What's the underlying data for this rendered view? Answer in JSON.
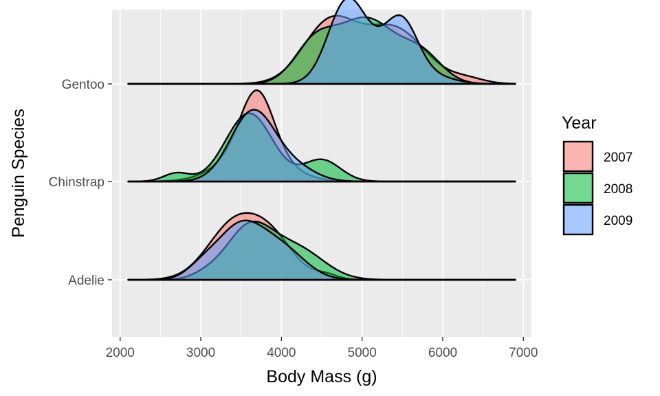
{
  "chart_data": {
    "type": "ridgeline",
    "title": "",
    "xlabel": "Body Mass (g)",
    "ylabel": "Penguin Species",
    "xlim": [
      1900,
      7100
    ],
    "xticks": [
      2000,
      3000,
      4000,
      5000,
      6000,
      7000
    ],
    "x_range_drawn": [
      2100,
      6900
    ],
    "species": [
      "Adelie",
      "Chinstrap",
      "Gentoo"
    ],
    "legend": {
      "title": "Year",
      "entries": [
        {
          "label": "2007",
          "color": "#F8766D"
        },
        {
          "label": "2008",
          "color": "#00BA38"
        },
        {
          "label": "2009",
          "color": "#619CFF"
        }
      ]
    },
    "grid": true,
    "background": "#EBEBEB",
    "series": [
      {
        "species": "Adelie",
        "year": "2007",
        "peaks": [
          {
            "mean": 3420,
            "sd": 330,
            "h": 0.67
          },
          {
            "mean": 3900,
            "sd": 280,
            "h": 0.4
          },
          {
            "mean": 4550,
            "sd": 150,
            "h": 0.06
          }
        ]
      },
      {
        "species": "Adelie",
        "year": "2008",
        "peaks": [
          {
            "mean": 3600,
            "sd": 290,
            "h": 0.62
          },
          {
            "mean": 4200,
            "sd": 330,
            "h": 0.36
          },
          {
            "mean": 3050,
            "sd": 180,
            "h": 0.05
          }
        ]
      },
      {
        "species": "Adelie",
        "year": "2009",
        "peaks": [
          {
            "mean": 3500,
            "sd": 310,
            "h": 0.66
          },
          {
            "mean": 4050,
            "sd": 280,
            "h": 0.3
          },
          {
            "mean": 3000,
            "sd": 180,
            "h": 0.1
          }
        ]
      },
      {
        "species": "Chinstrap",
        "year": "2007",
        "peaks": [
          {
            "mean": 3700,
            "sd": 200,
            "h": 0.7
          },
          {
            "mean": 3650,
            "sd": 380,
            "h": 0.4
          }
        ]
      },
      {
        "species": "Chinstrap",
        "year": "2008",
        "peaks": [
          {
            "mean": 3600,
            "sd": 290,
            "h": 0.82
          },
          {
            "mean": 4500,
            "sd": 230,
            "h": 0.26
          },
          {
            "mean": 2700,
            "sd": 160,
            "h": 0.1
          }
        ]
      },
      {
        "species": "Chinstrap",
        "year": "2009",
        "peaks": [
          {
            "mean": 3650,
            "sd": 280,
            "h": 0.85
          },
          {
            "mean": 4200,
            "sd": 250,
            "h": 0.14
          }
        ]
      },
      {
        "species": "Gentoo",
        "year": "2007",
        "peaks": [
          {
            "mean": 4600,
            "sd": 330,
            "h": 0.73
          },
          {
            "mean": 5400,
            "sd": 380,
            "h": 0.66
          },
          {
            "mean": 6300,
            "sd": 220,
            "h": 0.06
          }
        ]
      },
      {
        "species": "Gentoo",
        "year": "2008",
        "peaks": [
          {
            "mean": 4400,
            "sd": 250,
            "h": 0.42
          },
          {
            "mean": 5050,
            "sd": 380,
            "h": 0.78
          },
          {
            "mean": 5750,
            "sd": 250,
            "h": 0.3
          }
        ]
      },
      {
        "species": "Gentoo",
        "year": "2009",
        "peaks": [
          {
            "mean": 4800,
            "sd": 230,
            "h": 0.9
          },
          {
            "mean": 5500,
            "sd": 200,
            "h": 0.6
          },
          {
            "mean": 5200,
            "sd": 300,
            "h": 0.3
          },
          {
            "mean": 5900,
            "sd": 250,
            "h": 0.08
          }
        ]
      }
    ]
  }
}
